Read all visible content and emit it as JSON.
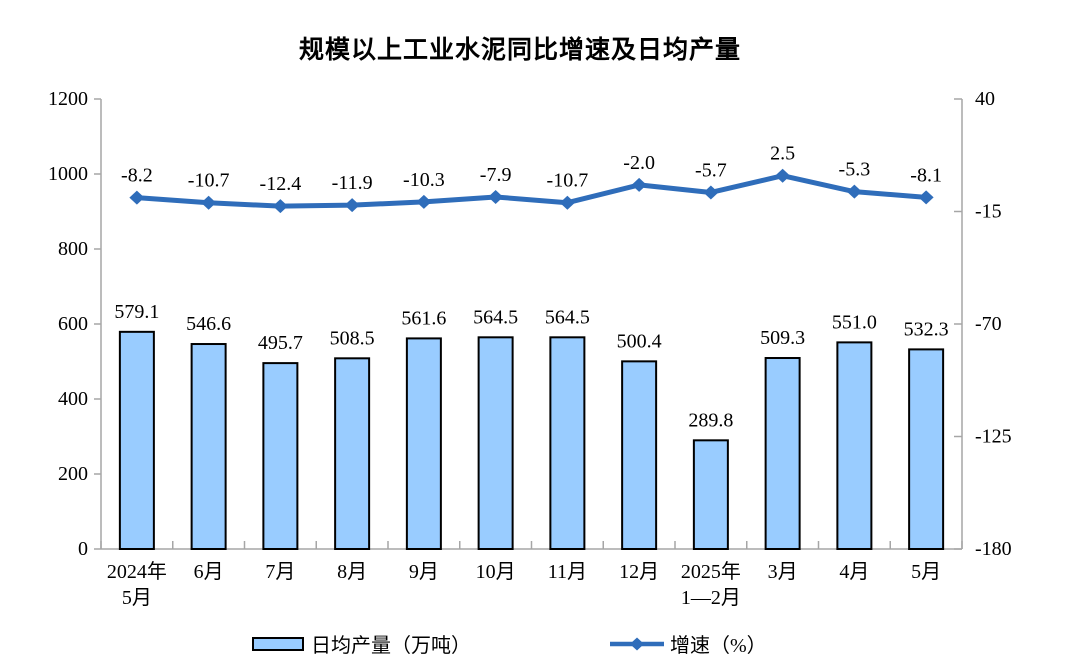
{
  "chart_data": {
    "type": "bar+line",
    "title": "规模以上工业水泥同比增速及日均产量",
    "categories": [
      "2024年\n5月",
      "6月",
      "7月",
      "8月",
      "9月",
      "10月",
      "11月",
      "12月",
      "2025年\n1—2月",
      "3月",
      "4月",
      "5月"
    ],
    "series": [
      {
        "name": "日均产量（万吨）",
        "type": "bar",
        "axis": "left",
        "values": [
          579.1,
          546.6,
          495.7,
          508.5,
          561.6,
          564.5,
          564.5,
          500.4,
          289.8,
          509.3,
          551.0,
          532.3
        ],
        "labels": [
          "579.1",
          "546.6",
          "495.7",
          "508.5",
          "561.6",
          "564.5",
          "564.5",
          "500.4",
          "289.8",
          "509.3",
          "551.0",
          "532.3"
        ]
      },
      {
        "name": "增速（%）",
        "type": "line",
        "axis": "right",
        "values": [
          -8.2,
          -10.7,
          -12.4,
          -11.9,
          -10.3,
          -7.9,
          -10.7,
          -2.0,
          -5.7,
          2.5,
          -5.3,
          -8.1
        ],
        "labels": [
          "-8.2",
          "-10.7",
          "-12.4",
          "-11.9",
          "-10.3",
          "-7.9",
          "-10.7",
          "-2.0",
          "-5.7",
          "2.5",
          "-5.3",
          "-8.1"
        ]
      }
    ],
    "left_axis": {
      "min": 0,
      "max": 1200,
      "step": 200,
      "tick_labels": [
        "1200",
        "1000",
        "800",
        "600",
        "400",
        "200",
        "0"
      ]
    },
    "right_axis": {
      "min": -180,
      "max": 40,
      "step": 55,
      "tick_labels": [
        "40",
        "-15",
        "-70",
        "-125",
        "-180"
      ]
    },
    "legend_position": "bottom",
    "grid": false,
    "colors": {
      "bar_fill": "#99CCFF",
      "bar_border": "#000000",
      "line": "#2F6DBA",
      "axis": "#A6A6A6",
      "text": "#000000"
    }
  }
}
